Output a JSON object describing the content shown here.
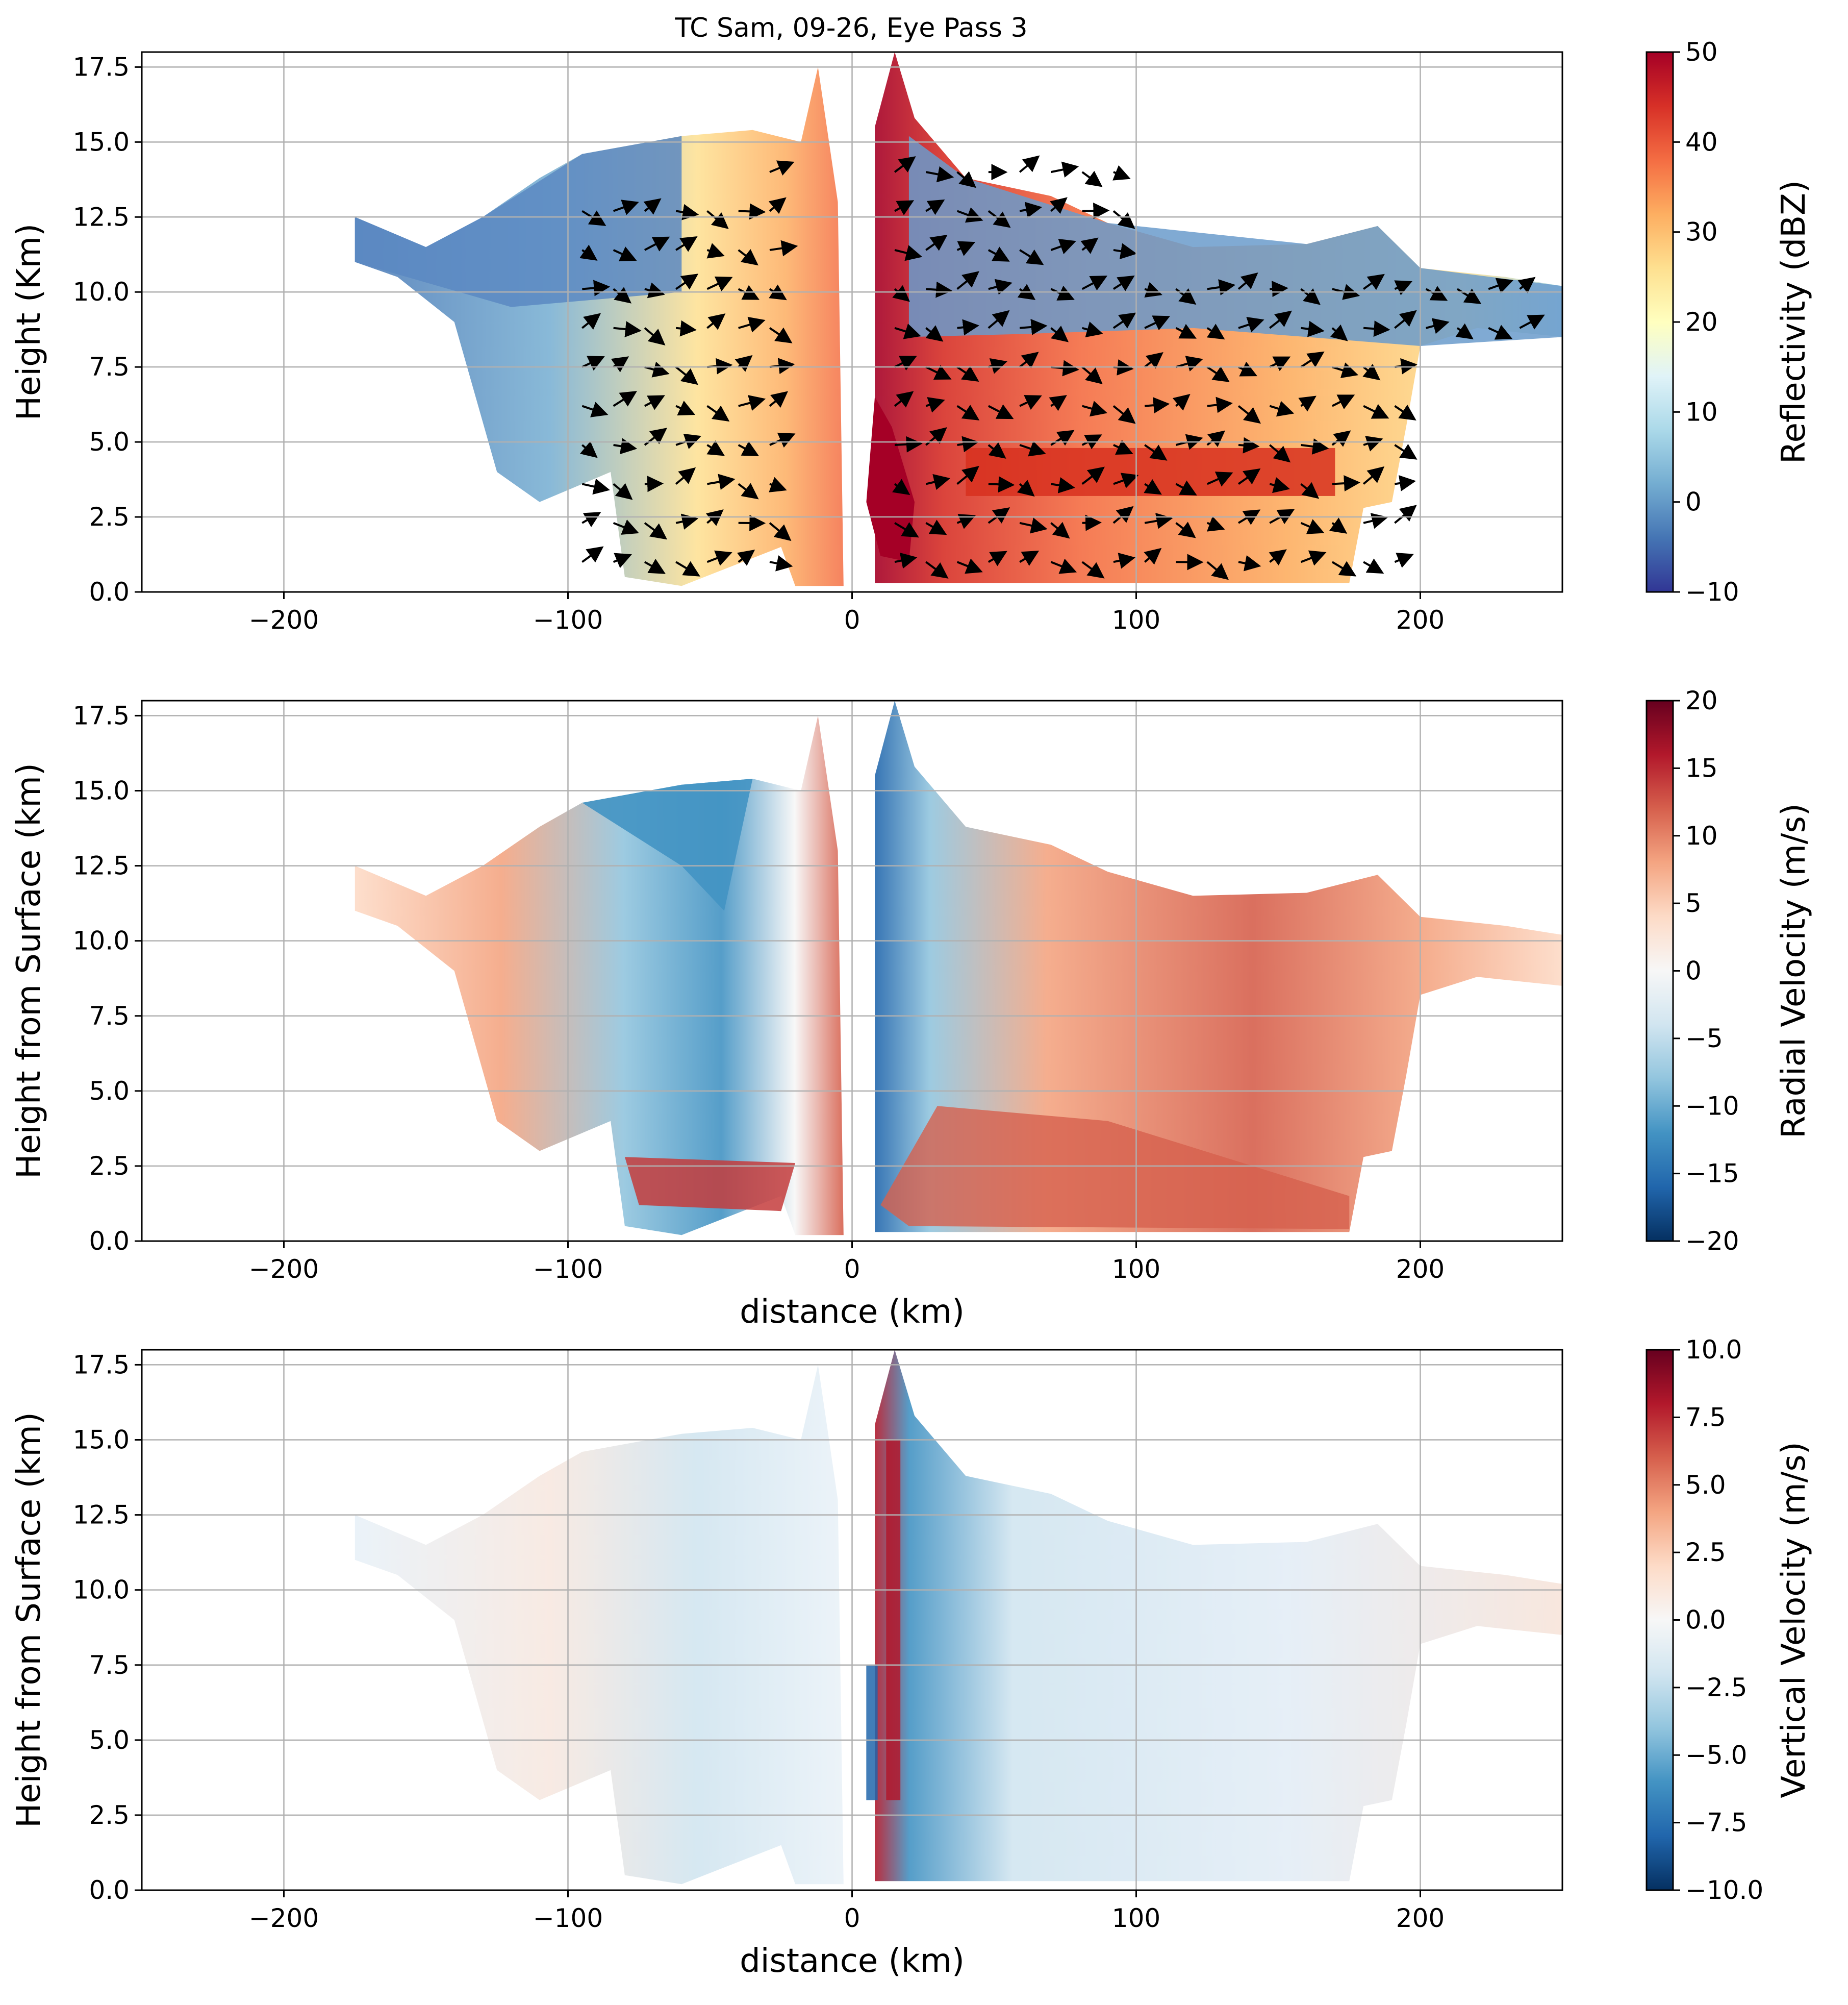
{
  "title": "TC Sam, 09-26, Eye Pass 3",
  "chart_data": [
    {
      "type": "heatmap",
      "panel": "reflectivity",
      "title": "TC Sam, 09-26, Eye Pass 3",
      "xlabel": "",
      "ylabel": "Height (Km)",
      "xlim": [
        -250,
        250
      ],
      "ylim": [
        0,
        18
      ],
      "xticks": [
        -200,
        -100,
        0,
        100,
        200
      ],
      "xtick_labels": [
        "−200",
        "−100",
        "0",
        "100",
        "200"
      ],
      "yticks": [
        0.0,
        2.5,
        5.0,
        7.5,
        10.0,
        12.5,
        15.0,
        17.5
      ],
      "ytick_labels": [
        "0.0",
        "2.5",
        "5.0",
        "7.5",
        "10.0",
        "12.5",
        "15.0",
        "17.5"
      ],
      "grid": true,
      "overlay": "wind vectors (black arrows)",
      "colorbar": {
        "label": "Reflectivity (dBZ)",
        "colormap": "RdYlBu_r",
        "range": [
          -10,
          50
        ],
        "ticks": [
          -10,
          0,
          10,
          20,
          30,
          40,
          50
        ],
        "tick_labels": [
          "−10",
          "0",
          "10",
          "20",
          "30",
          "40",
          "50"
        ]
      }
    },
    {
      "type": "heatmap",
      "panel": "radial-velocity",
      "title": "",
      "xlabel": "distance (km)",
      "ylabel": "Height from Surface (km)",
      "xlim": [
        -250,
        250
      ],
      "ylim": [
        0,
        18
      ],
      "xticks": [
        -200,
        -100,
        0,
        100,
        200
      ],
      "xtick_labels": [
        "−200",
        "−100",
        "0",
        "100",
        "200"
      ],
      "yticks": [
        0.0,
        2.5,
        5.0,
        7.5,
        10.0,
        12.5,
        15.0,
        17.5
      ],
      "ytick_labels": [
        "0.0",
        "2.5",
        "5.0",
        "7.5",
        "10.0",
        "12.5",
        "15.0",
        "17.5"
      ],
      "grid": true,
      "colorbar": {
        "label": "Radial Velocity (m/s)",
        "colormap": "RdBu_r",
        "range": [
          -20,
          20
        ],
        "ticks": [
          -20,
          -15,
          -10,
          -5,
          0,
          5,
          10,
          15,
          20
        ],
        "tick_labels": [
          "−20",
          "−15",
          "−10",
          "−5",
          "0",
          "5",
          "10",
          "15",
          "20"
        ]
      }
    },
    {
      "type": "heatmap",
      "panel": "vertical-velocity",
      "title": "",
      "xlabel": "distance (km)",
      "ylabel": "Height from Surface (km)",
      "xlim": [
        -250,
        250
      ],
      "ylim": [
        0,
        18
      ],
      "xticks": [
        -200,
        -100,
        0,
        100,
        200
      ],
      "xtick_labels": [
        "−200",
        "−100",
        "0",
        "100",
        "200"
      ],
      "yticks": [
        0.0,
        2.5,
        5.0,
        7.5,
        10.0,
        12.5,
        15.0,
        17.5
      ],
      "ytick_labels": [
        "0.0",
        "2.5",
        "5.0",
        "7.5",
        "10.0",
        "12.5",
        "15.0",
        "17.5"
      ],
      "grid": true,
      "colorbar": {
        "label": "Vertical Velocity (m/s)",
        "colormap": "RdBu_r",
        "range": [
          -10,
          10
        ],
        "ticks": [
          -10,
          -7.5,
          -5,
          -2.5,
          0,
          2.5,
          5,
          7.5,
          10
        ],
        "tick_labels": [
          "−10.0",
          "−7.5",
          "−5.0",
          "−2.5",
          "0.0",
          "2.5",
          "5.0",
          "7.5",
          "10.0"
        ]
      }
    }
  ]
}
